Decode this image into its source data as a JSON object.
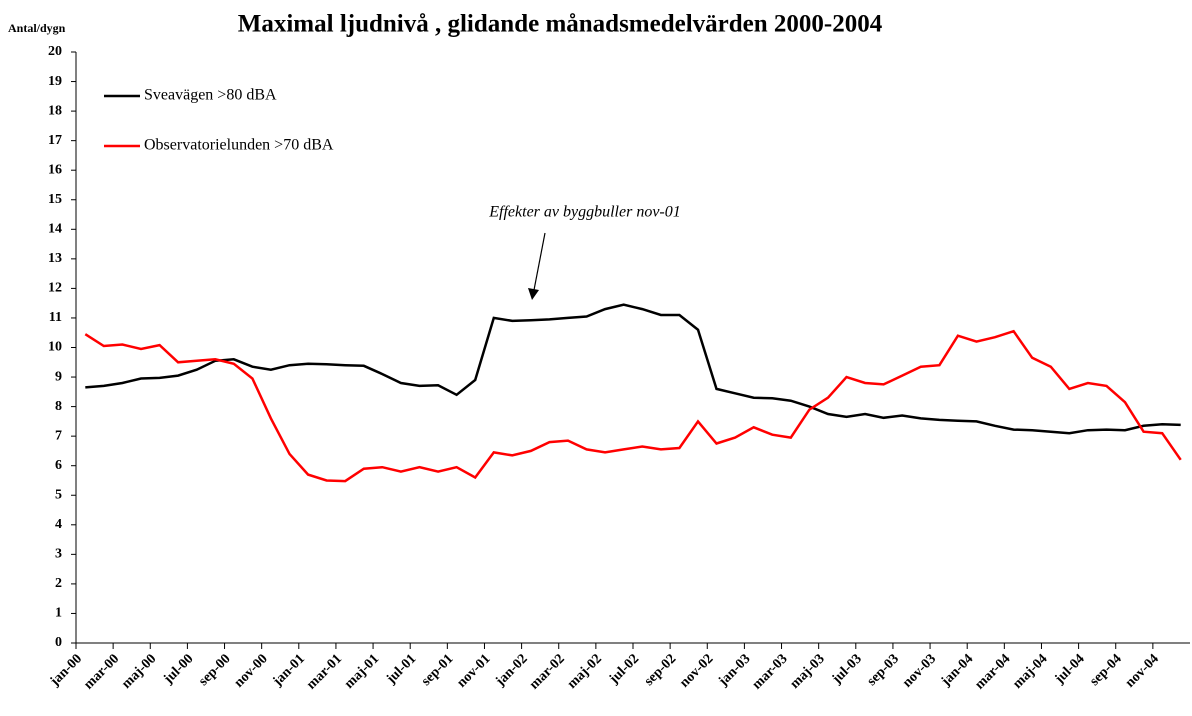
{
  "chart_data": {
    "type": "line",
    "title": "Maximal ljudnivå , glidande månadsmedelvärden 2000-2004",
    "y_label": "Antal/dygn",
    "annotation": "Effekter av byggbuller nov-01",
    "categories": [
      "jan-00",
      null,
      "mar-00",
      null,
      "maj-00",
      null,
      "jul-00",
      null,
      "sep-00",
      null,
      "nov-00",
      null,
      "jan-01",
      null,
      "mar-01",
      null,
      "maj-01",
      null,
      "jul-01",
      null,
      "sep-01",
      null,
      "nov-01",
      null,
      "jan-02",
      null,
      "mar-02",
      null,
      "maj-02",
      null,
      "jul-02",
      null,
      "sep-02",
      null,
      "nov-02",
      null,
      "jan-03",
      null,
      "mar-03",
      null,
      "maj-03",
      null,
      "jul-03",
      null,
      "sep-03",
      null,
      "nov-03",
      null,
      "jan-04",
      null,
      "mar-04",
      null,
      "maj-04",
      null,
      "jul-04",
      null,
      "sep-04",
      null,
      "nov-04",
      null
    ],
    "series": [
      {
        "name": "Sveavägen >80 dBA",
        "color": "#000000",
        "values": [
          8.65,
          8.7,
          8.8,
          8.95,
          8.97,
          9.05,
          9.25,
          9.55,
          9.6,
          9.35,
          9.25,
          9.4,
          9.45,
          9.43,
          9.4,
          9.38,
          9.1,
          8.8,
          8.7,
          8.72,
          8.4,
          8.9,
          11.0,
          10.9,
          10.92,
          10.95,
          11.0,
          11.05,
          11.3,
          11.45,
          11.3,
          11.1,
          11.1,
          10.6,
          8.6,
          8.45,
          8.3,
          8.28,
          8.2,
          8.0,
          7.75,
          7.65,
          7.75,
          7.62,
          7.7,
          7.6,
          7.55,
          7.52,
          7.5,
          7.35,
          7.22,
          7.2,
          7.15,
          7.1,
          7.2,
          7.22,
          7.2,
          7.35,
          7.4,
          7.38
        ]
      },
      {
        "name": "Observatorielunden >70 dBA",
        "color": "#ff0000",
        "values": [
          10.45,
          10.05,
          10.1,
          9.95,
          10.08,
          9.5,
          9.55,
          9.6,
          9.45,
          8.95,
          7.6,
          6.4,
          5.7,
          5.5,
          5.48,
          5.9,
          5.95,
          5.8,
          5.95,
          5.8,
          5.95,
          5.6,
          6.45,
          6.35,
          6.5,
          6.8,
          6.85,
          6.55,
          6.45,
          6.55,
          6.65,
          6.55,
          6.6,
          7.5,
          6.75,
          6.95,
          7.3,
          7.05,
          6.95,
          7.9,
          8.3,
          9.0,
          8.8,
          8.75,
          9.05,
          9.35,
          9.4,
          10.4,
          10.2,
          10.35,
          10.55,
          9.65,
          9.35,
          8.6,
          8.8,
          8.7,
          8.15,
          7.15,
          7.1,
          6.2
        ]
      }
    ],
    "ylim": [
      0,
      20
    ],
    "yticks": [
      0,
      1,
      2,
      3,
      4,
      5,
      6,
      7,
      8,
      9,
      10,
      11,
      12,
      13,
      14,
      15,
      16,
      17,
      18,
      19,
      20
    ],
    "grid": false,
    "legend": "upper left"
  }
}
